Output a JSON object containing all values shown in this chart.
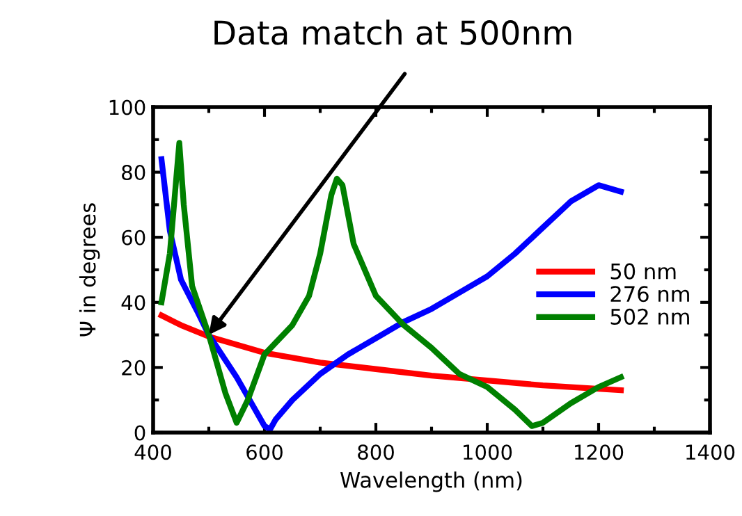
{
  "chart_data": {
    "type": "line",
    "xlabel": "Wavelength (nm)",
    "ylabel": "Ψ in degrees",
    "xlim": [
      400,
      1400
    ],
    "xticks": [
      400,
      600,
      800,
      1000,
      1200,
      1400
    ],
    "ylim": [
      0,
      100
    ],
    "yticks": [
      0,
      20,
      40,
      60,
      80,
      100
    ],
    "grid": false,
    "legend": "right",
    "marker": "none",
    "line_style": "solid",
    "annotations": [
      {
        "text": "Data match at 500nm",
        "x": 500,
        "y": 30
      }
    ],
    "series": [
      {
        "name": "50 nm",
        "color": "#ff0000",
        "x": [
          415,
          450,
          500,
          600,
          700,
          800,
          900,
          1000,
          1100,
          1240
        ],
        "values": [
          36,
          33,
          29.5,
          24.5,
          21.5,
          19.5,
          17.5,
          16,
          14.5,
          13
        ]
      },
      {
        "name": "276 nm",
        "color": "#0000ff",
        "x": [
          415,
          430,
          450,
          480,
          500,
          550,
          580,
          600,
          610,
          620,
          650,
          700,
          750,
          800,
          850,
          900,
          950,
          1000,
          1050,
          1100,
          1150,
          1200,
          1240
        ],
        "values": [
          84,
          62,
          47,
          37,
          30,
          17,
          8,
          2,
          1,
          4,
          10,
          18,
          24,
          29,
          34,
          38,
          43,
          48,
          55,
          63,
          71,
          76,
          74
        ]
      },
      {
        "name": "502 nm",
        "color": "#008000",
        "x": [
          415,
          430,
          440,
          447,
          455,
          470,
          500,
          530,
          550,
          570,
          600,
          650,
          680,
          700,
          720,
          730,
          740,
          760,
          800,
          850,
          900,
          950,
          1000,
          1050,
          1080,
          1100,
          1150,
          1200,
          1240
        ],
        "values": [
          40,
          55,
          75,
          89,
          70,
          45,
          30,
          12,
          3,
          10,
          24,
          33,
          42,
          55,
          73,
          78,
          76,
          58,
          42,
          33,
          26,
          18,
          14,
          7,
          2,
          3,
          9,
          14,
          17
        ]
      }
    ]
  }
}
